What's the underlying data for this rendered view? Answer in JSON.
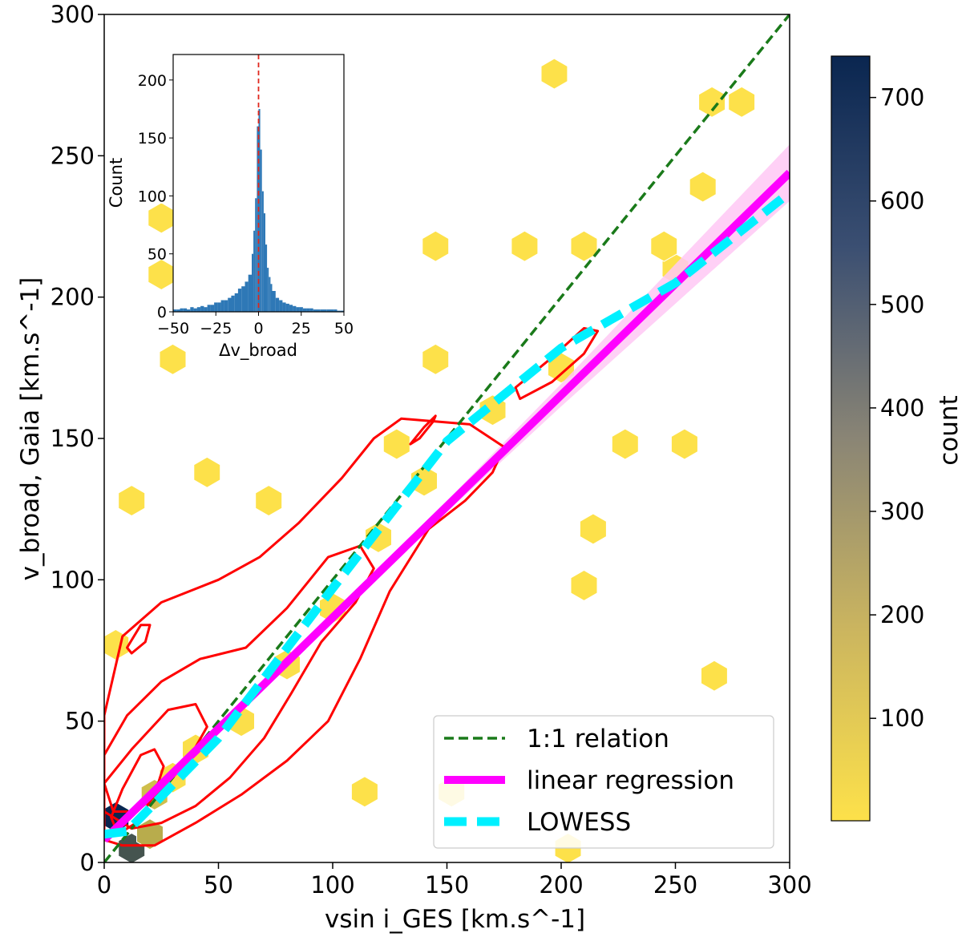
{
  "chart_data": {
    "type": "scatter",
    "subtype": "hexbin-density-with-contours",
    "xlabel": "vsin i_GES [km.s^-1]",
    "ylabel": "v_broad, Gaia [km.s^-1]",
    "xlim": [
      0,
      300
    ],
    "ylim": [
      0,
      300
    ],
    "x_ticks": [
      "0",
      "50",
      "100",
      "150",
      "200",
      "250",
      "300"
    ],
    "y_ticks": [
      "0",
      "50",
      "100",
      "150",
      "200",
      "250",
      "300"
    ],
    "colors": {
      "hex_low": "#fde14a",
      "hex_high": "#0a2650",
      "one_to_one": "#1a7a1a",
      "regression": "#ff00ff",
      "regression_band": "#ffc8f5",
      "lowess": "#00f0ff",
      "contour": "#ff0000",
      "inset_bars": "#2e78b6",
      "inset_zero_line": "#e0281e"
    },
    "lines": {
      "one_to_one": {
        "x": [
          0,
          300
        ],
        "y": [
          0,
          300
        ]
      },
      "linear_regression": {
        "x": [
          0,
          300
        ],
        "y": [
          8,
          244
        ]
      },
      "lowess": {
        "x": [
          0,
          10,
          50,
          100,
          150,
          200,
          250,
          300
        ],
        "y": [
          10,
          11,
          44,
          97,
          149,
          182,
          205,
          237
        ]
      }
    },
    "hexbins": [
      {
        "x": 5,
        "y": 16,
        "count": 740
      },
      {
        "x": 12,
        "y": 5,
        "count": 560
      },
      {
        "x": 20,
        "y": 10,
        "count": 210
      },
      {
        "x": 22,
        "y": 24,
        "count": 140
      },
      {
        "x": 152,
        "y": 25,
        "count": 30
      },
      {
        "x": 30,
        "y": 30,
        "count": 12
      },
      {
        "x": 40,
        "y": 40,
        "count": 10
      },
      {
        "x": 60,
        "y": 50,
        "count": 8
      },
      {
        "x": 80,
        "y": 70,
        "count": 6
      },
      {
        "x": 100,
        "y": 90,
        "count": 5
      },
      {
        "x": 120,
        "y": 115,
        "count": 4
      },
      {
        "x": 140,
        "y": 135,
        "count": 3
      },
      {
        "x": 170,
        "y": 160,
        "count": 3
      },
      {
        "x": 200,
        "y": 175,
        "count": 2
      },
      {
        "x": 250,
        "y": 210,
        "count": 2
      },
      {
        "x": 197,
        "y": 279,
        "count": 1
      },
      {
        "x": 266,
        "y": 269,
        "count": 1
      },
      {
        "x": 279,
        "y": 269,
        "count": 1
      },
      {
        "x": 262,
        "y": 239,
        "count": 1
      },
      {
        "x": 25,
        "y": 228,
        "count": 1
      },
      {
        "x": 25,
        "y": 208,
        "count": 1
      },
      {
        "x": 145,
        "y": 218,
        "count": 1
      },
      {
        "x": 184,
        "y": 218,
        "count": 1
      },
      {
        "x": 210,
        "y": 218,
        "count": 1
      },
      {
        "x": 245,
        "y": 218,
        "count": 1
      },
      {
        "x": 30,
        "y": 178,
        "count": 1
      },
      {
        "x": 145,
        "y": 178,
        "count": 1
      },
      {
        "x": 128,
        "y": 148,
        "count": 1
      },
      {
        "x": 228,
        "y": 148,
        "count": 1
      },
      {
        "x": 254,
        "y": 148,
        "count": 1
      },
      {
        "x": 45,
        "y": 138,
        "count": 1
      },
      {
        "x": 72,
        "y": 128,
        "count": 1
      },
      {
        "x": 12,
        "y": 128,
        "count": 1
      },
      {
        "x": 214,
        "y": 118,
        "count": 1
      },
      {
        "x": 210,
        "y": 98,
        "count": 1
      },
      {
        "x": 267,
        "y": 66,
        "count": 1
      },
      {
        "x": 203,
        "y": 5,
        "count": 1
      },
      {
        "x": 114,
        "y": 25,
        "count": 1
      },
      {
        "x": 5,
        "y": 77,
        "count": 1
      }
    ],
    "contours": [
      [
        [
          0,
          52
        ],
        [
          8,
          80
        ],
        [
          25,
          92
        ],
        [
          50,
          100
        ],
        [
          68,
          108
        ],
        [
          85,
          120
        ],
        [
          104,
          136
        ],
        [
          118,
          150
        ],
        [
          130,
          157
        ],
        [
          160,
          155
        ],
        [
          175,
          147
        ],
        [
          170,
          138
        ],
        [
          158,
          128
        ],
        [
          142,
          118
        ],
        [
          125,
          96
        ],
        [
          112,
          72
        ],
        [
          98,
          50
        ],
        [
          80,
          36
        ],
        [
          60,
          24
        ],
        [
          40,
          14
        ],
        [
          22,
          6
        ],
        [
          8,
          6
        ],
        [
          0,
          8
        ]
      ],
      [
        [
          0,
          38
        ],
        [
          10,
          52
        ],
        [
          25,
          64
        ],
        [
          42,
          72
        ],
        [
          62,
          76
        ],
        [
          80,
          90
        ],
        [
          98,
          108
        ],
        [
          112,
          112
        ],
        [
          118,
          104
        ],
        [
          110,
          92
        ],
        [
          95,
          78
        ],
        [
          82,
          60
        ],
        [
          70,
          44
        ],
        [
          55,
          30
        ],
        [
          40,
          20
        ],
        [
          25,
          14
        ],
        [
          12,
          12
        ],
        [
          0,
          18
        ]
      ],
      [
        [
          0,
          28
        ],
        [
          12,
          40
        ],
        [
          28,
          54
        ],
        [
          40,
          56
        ],
        [
          45,
          48
        ],
        [
          38,
          38
        ],
        [
          26,
          26
        ],
        [
          14,
          18
        ],
        [
          4,
          18
        ]
      ],
      [
        [
          3,
          16
        ],
        [
          8,
          26
        ],
        [
          16,
          38
        ],
        [
          22,
          40
        ],
        [
          26,
          34
        ],
        [
          22,
          24
        ],
        [
          14,
          14
        ],
        [
          6,
          10
        ]
      ],
      [
        [
          10,
          76
        ],
        [
          16,
          84
        ],
        [
          20,
          84
        ],
        [
          18,
          78
        ],
        [
          12,
          74
        ]
      ],
      [
        [
          134,
          148
        ],
        [
          140,
          154
        ],
        [
          145,
          158
        ],
        [
          144,
          156
        ],
        [
          138,
          150
        ]
      ],
      [
        [
          180,
          168
        ],
        [
          195,
          178
        ],
        [
          210,
          189
        ],
        [
          216,
          188
        ],
        [
          210,
          180
        ],
        [
          196,
          170
        ],
        [
          182,
          164
        ]
      ]
    ],
    "legend": {
      "location": "lower-right",
      "items": [
        {
          "label": "1:1 relation"
        },
        {
          "label": "linear regression"
        },
        {
          "label": "LOWESS"
        }
      ]
    },
    "colorbar": {
      "label": "count",
      "range": [
        1,
        740
      ],
      "ticks": [
        "100",
        "200",
        "300",
        "400",
        "500",
        "600",
        "700"
      ]
    },
    "inset": {
      "type": "bar",
      "xlabel": "Δv_broad",
      "ylabel": "Count",
      "xlim": [
        -50,
        50
      ],
      "ylim": [
        0,
        222
      ],
      "x_ticks": [
        "−50",
        "−25",
        "0",
        "25",
        "50"
      ],
      "y_ticks": [
        "0",
        "50",
        "100",
        "150",
        "200"
      ],
      "zero_line_x": 0,
      "bins": [
        -50,
        -48,
        -46,
        -44,
        -42,
        -40,
        -38,
        -36,
        -34,
        -32,
        -30,
        -28,
        -26,
        -24,
        -22,
        -20,
        -18,
        -16,
        -14,
        -12,
        -10,
        -8,
        -6,
        -4,
        -3,
        -2,
        -1,
        0,
        1,
        2,
        3,
        4,
        5,
        6,
        7,
        8,
        10,
        12,
        14,
        16,
        18,
        20,
        22,
        24,
        26,
        28,
        30,
        32,
        34,
        36,
        38,
        40,
        42,
        44,
        46,
        48,
        50
      ],
      "counts": [
        2,
        2,
        3,
        3,
        2,
        4,
        3,
        4,
        5,
        4,
        6,
        6,
        8,
        8,
        10,
        10,
        12,
        14,
        16,
        20,
        22,
        26,
        32,
        50,
        70,
        98,
        160,
        175,
        140,
        104,
        85,
        58,
        38,
        30,
        24,
        18,
        12,
        10,
        8,
        7,
        6,
        5,
        4,
        4,
        3,
        3,
        3,
        2,
        2,
        2,
        2,
        2,
        2,
        2,
        1,
        1
      ]
    }
  }
}
